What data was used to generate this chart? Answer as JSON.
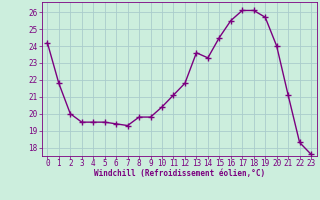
{
  "x": [
    0,
    1,
    2,
    3,
    4,
    5,
    6,
    7,
    8,
    9,
    10,
    11,
    12,
    13,
    14,
    15,
    16,
    17,
    18,
    19,
    20,
    21,
    22,
    23
  ],
  "y": [
    24.2,
    21.8,
    20.0,
    19.5,
    19.5,
    19.5,
    19.4,
    19.3,
    19.8,
    19.8,
    20.4,
    21.1,
    21.8,
    23.6,
    23.3,
    24.5,
    25.5,
    26.1,
    26.1,
    25.7,
    24.0,
    21.1,
    18.3,
    17.6
  ],
  "line_color": "#7b0080",
  "marker": "+",
  "marker_size": 4,
  "bg_color": "#cceedd",
  "grid_color": "#aacccc",
  "xlabel": "Windchill (Refroidissement éolien,°C)",
  "xlabel_color": "#7b0080",
  "tick_color": "#7b0080",
  "spine_color": "#7b0080",
  "ylim": [
    17.5,
    26.6
  ],
  "xlim": [
    -0.5,
    23.5
  ],
  "yticks": [
    18,
    19,
    20,
    21,
    22,
    23,
    24,
    25,
    26
  ],
  "xticks": [
    0,
    1,
    2,
    3,
    4,
    5,
    6,
    7,
    8,
    9,
    10,
    11,
    12,
    13,
    14,
    15,
    16,
    17,
    18,
    19,
    20,
    21,
    22,
    23
  ],
  "tick_fontsize": 5.5,
  "xlabel_fontsize": 5.5,
  "linewidth": 1.0
}
